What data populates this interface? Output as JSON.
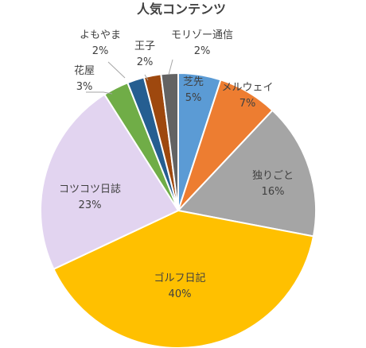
{
  "chart_data": {
    "type": "pie",
    "title": "人気コンテンツ",
    "categories": [
      "芝先",
      "メルウェイ",
      "独りごと",
      "ゴルフ日記",
      "コツコツ日誌",
      "花屋",
      "よもやま",
      "王子",
      "モリゾー通信"
    ],
    "values": [
      5,
      7,
      16,
      40,
      23,
      3,
      2,
      2,
      2
    ],
    "value_labels": [
      "5%",
      "7%",
      "16%",
      "40%",
      "23%",
      "3%",
      "2%",
      "2%",
      "2%"
    ],
    "colors": [
      "#5b9bd5",
      "#ed7d31",
      "#a5a5a5",
      "#ffc000",
      "#e2d4f0",
      "#70ad47",
      "#255e91",
      "#9e480e",
      "#636363"
    ],
    "start": "12 o'clock",
    "direction": "clockwise",
    "legend": "none"
  }
}
